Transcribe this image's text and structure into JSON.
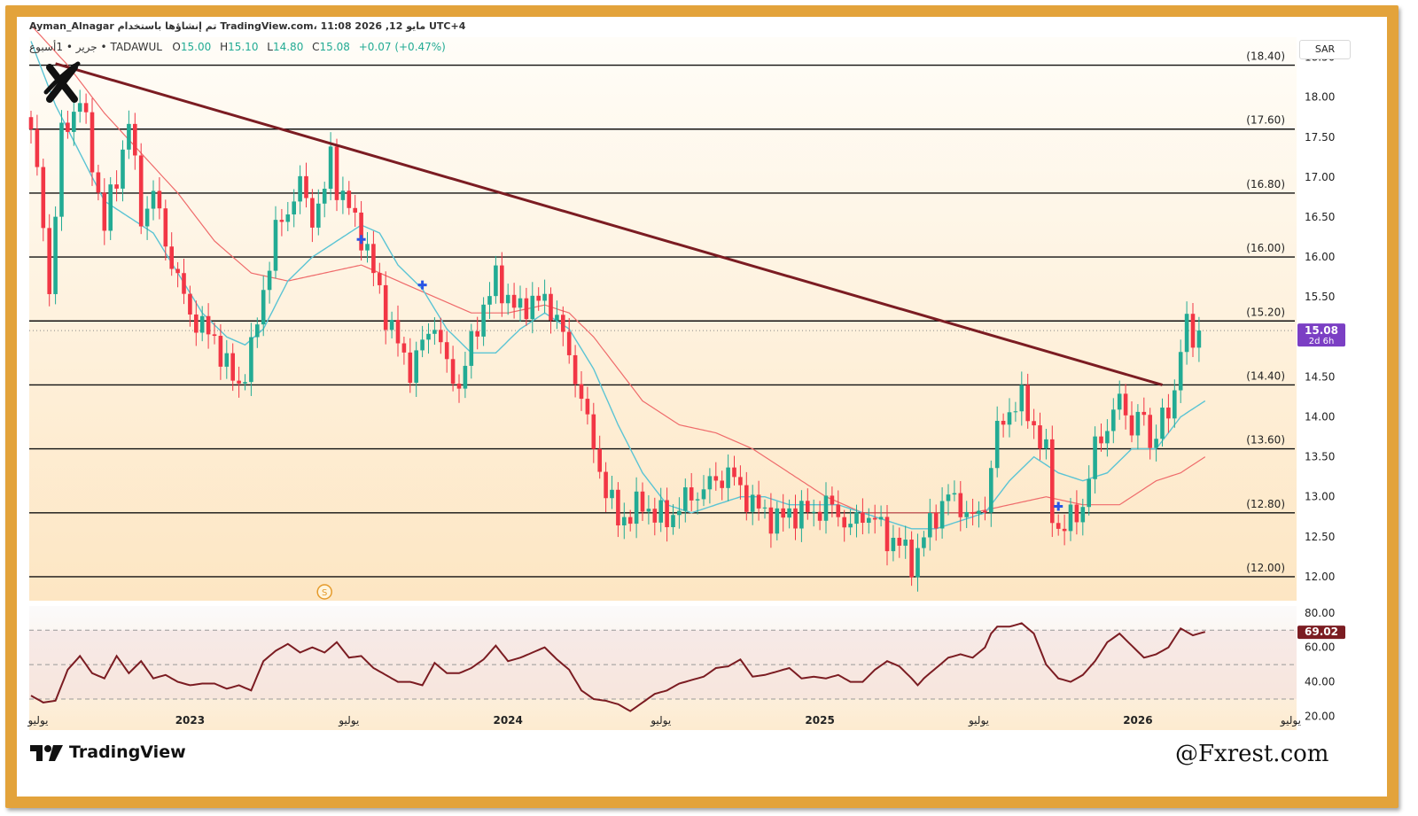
{
  "header": {
    "line1": "Ayman_Alnagar تم إنشاؤها باستخدام TradingView.com، 11:08 2026 ,12 مايو UTC+4",
    "symbol_line": "جرير • 1أسبوع • TADAWUL",
    "open_label": "O",
    "open_value": "15.00",
    "high_label": "H",
    "high_value": "15.10",
    "low_label": "L",
    "low_value": "14.80",
    "close_label": "C",
    "close_value": "15.08",
    "change_value": "+0.07 (+0.47%)"
  },
  "currency_button": {
    "label": "SAR"
  },
  "logo_icon": "x-mark-icon",
  "footer": {
    "brand": "TradingView",
    "brand_icon": "tradingview-logo-icon",
    "watermark": "@Fxrest.com"
  },
  "colors": {
    "up": "#22ab94",
    "down": "#f23645",
    "trendline": "#7b1c22",
    "ma_fast": "#5bc4d4",
    "ma_slow": "#ef6b6b",
    "rsi": "#7b1c22",
    "price_badge": "#7b3fc4",
    "rsi_badge": "#7b1c22",
    "frame": "#e3a33b"
  },
  "chart_data": [
    {
      "type": "candlestick",
      "timeframe": "1W",
      "exchange": "TADAWUL",
      "ylim": [
        11.7,
        18.75
      ],
      "y_ticks": [
        "18.50",
        "18.00",
        "17.50",
        "17.00",
        "16.50",
        "16.00",
        "15.50",
        "15.00",
        "14.50",
        "14.00",
        "13.50",
        "13.00",
        "12.50",
        "12.00"
      ],
      "x_ticks": [
        {
          "label": "يوليو",
          "x_index": 0
        },
        {
          "label": "2023",
          "x_index": 26
        },
        {
          "label": "يوليو",
          "x_index": 52
        },
        {
          "label": "2024",
          "x_index": 78
        },
        {
          "label": "يوليو",
          "x_index": 103
        },
        {
          "label": "2025",
          "x_index": 129
        },
        {
          "label": "يوليو",
          "x_index": 155
        },
        {
          "label": "2026",
          "x_index": 181
        },
        {
          "label": "يوليو",
          "x_index": 206
        }
      ],
      "levels": [
        {
          "value": 18.4,
          "label": "(18.40)"
        },
        {
          "value": 17.6,
          "label": "(17.60)"
        },
        {
          "value": 16.8,
          "label": "(16.80)"
        },
        {
          "value": 16.0,
          "label": "(16.00)"
        },
        {
          "value": 15.2,
          "label": "(15.20)"
        },
        {
          "value": 14.4,
          "label": "(14.40)"
        },
        {
          "value": 13.6,
          "label": "(13.60)"
        },
        {
          "value": 12.8,
          "label": "(12.80)"
        },
        {
          "value": 12.0,
          "label": "(12.00)"
        }
      ],
      "trendline": {
        "start": {
          "x_index": 4,
          "value": 18.42
        },
        "end": {
          "x_index": 185,
          "value": 14.4
        }
      },
      "current_price": {
        "value": 15.08,
        "label": "15.08",
        "countdown": "2d 6h"
      },
      "cross_markers": [
        {
          "x_index": 54,
          "value": 16.22
        },
        {
          "x_index": 64,
          "value": 15.65
        },
        {
          "x_index": 168,
          "value": 12.88
        }
      ],
      "dividend_marker": {
        "x_index": 48,
        "label": "S"
      },
      "close_anchors": [
        [
          0,
          17.6
        ],
        [
          2,
          16.4
        ],
        [
          3,
          15.6
        ],
        [
          5,
          17.5
        ],
        [
          8,
          18.0
        ],
        [
          10,
          17.2
        ],
        [
          12,
          16.4
        ],
        [
          14,
          17.0
        ],
        [
          16,
          17.7
        ],
        [
          18,
          16.5
        ],
        [
          20,
          16.8
        ],
        [
          22,
          16.2
        ],
        [
          24,
          15.7
        ],
        [
          26,
          15.3
        ],
        [
          28,
          15.1
        ],
        [
          30,
          15.0
        ],
        [
          32,
          14.6
        ],
        [
          34,
          14.4
        ],
        [
          36,
          14.8
        ],
        [
          38,
          15.6
        ],
        [
          40,
          16.3
        ],
        [
          42,
          16.6
        ],
        [
          44,
          16.9
        ],
        [
          46,
          16.5
        ],
        [
          48,
          16.8
        ],
        [
          49,
          17.3
        ],
        [
          50,
          16.9
        ],
        [
          52,
          16.6
        ],
        [
          54,
          16.3
        ],
        [
          56,
          15.8
        ],
        [
          58,
          15.3
        ],
        [
          60,
          14.9
        ],
        [
          62,
          14.6
        ],
        [
          64,
          14.9
        ],
        [
          66,
          15.2
        ],
        [
          68,
          14.6
        ],
        [
          70,
          14.4
        ],
        [
          72,
          14.9
        ],
        [
          74,
          15.4
        ],
        [
          76,
          15.7
        ],
        [
          78,
          15.5
        ],
        [
          80,
          15.3
        ],
        [
          82,
          15.5
        ],
        [
          84,
          15.4
        ],
        [
          86,
          15.3
        ],
        [
          88,
          14.7
        ],
        [
          90,
          14.3
        ],
        [
          91,
          13.9
        ],
        [
          92,
          13.6
        ],
        [
          94,
          13.1
        ],
        [
          96,
          12.7
        ],
        [
          98,
          12.8
        ],
        [
          100,
          12.9
        ],
        [
          102,
          12.8
        ],
        [
          104,
          12.7
        ],
        [
          106,
          12.9
        ],
        [
          108,
          13.0
        ],
        [
          110,
          13.1
        ],
        [
          112,
          13.2
        ],
        [
          114,
          13.3
        ],
        [
          116,
          13.1
        ],
        [
          118,
          12.9
        ],
        [
          120,
          12.8
        ],
        [
          122,
          12.7
        ],
        [
          124,
          12.8
        ],
        [
          126,
          12.8
        ],
        [
          128,
          12.8
        ],
        [
          130,
          12.9
        ],
        [
          132,
          12.8
        ],
        [
          134,
          12.6
        ],
        [
          136,
          12.8
        ],
        [
          138,
          12.7
        ],
        [
          140,
          12.5
        ],
        [
          142,
          12.4
        ],
        [
          144,
          12.2
        ],
        [
          145,
          12.3
        ],
        [
          146,
          12.5
        ],
        [
          148,
          12.8
        ],
        [
          150,
          13.0
        ],
        [
          152,
          12.9
        ],
        [
          154,
          12.7
        ],
        [
          156,
          12.9
        ],
        [
          157,
          13.4
        ],
        [
          158,
          13.8
        ],
        [
          160,
          14.1
        ],
        [
          162,
          14.2
        ],
        [
          164,
          13.9
        ],
        [
          166,
          13.5
        ],
        [
          167,
          12.8
        ],
        [
          168,
          12.6
        ],
        [
          170,
          12.7
        ],
        [
          172,
          12.9
        ],
        [
          174,
          13.6
        ],
        [
          176,
          13.9
        ],
        [
          178,
          14.2
        ],
        [
          180,
          13.9
        ],
        [
          182,
          14.0
        ],
        [
          183,
          13.6
        ],
        [
          184,
          13.9
        ],
        [
          186,
          14.0
        ],
        [
          187,
          14.3
        ],
        [
          188,
          15.0
        ],
        [
          189,
          15.1
        ],
        [
          190,
          14.9
        ],
        [
          191,
          15.08
        ]
      ],
      "moving_average_fast": [
        [
          0,
          18.7
        ],
        [
          4,
          17.9
        ],
        [
          8,
          17.3
        ],
        [
          12,
          16.7
        ],
        [
          16,
          16.5
        ],
        [
          20,
          16.3
        ],
        [
          24,
          15.8
        ],
        [
          28,
          15.3
        ],
        [
          32,
          15.0
        ],
        [
          35,
          14.9
        ],
        [
          38,
          15.1
        ],
        [
          42,
          15.7
        ],
        [
          46,
          16.0
        ],
        [
          50,
          16.2
        ],
        [
          54,
          16.4
        ],
        [
          57,
          16.3
        ],
        [
          60,
          15.9
        ],
        [
          64,
          15.6
        ],
        [
          68,
          15.1
        ],
        [
          72,
          14.8
        ],
        [
          76,
          14.8
        ],
        [
          80,
          15.1
        ],
        [
          84,
          15.3
        ],
        [
          88,
          15.1
        ],
        [
          92,
          14.6
        ],
        [
          96,
          13.9
        ],
        [
          100,
          13.3
        ],
        [
          104,
          12.9
        ],
        [
          108,
          12.8
        ],
        [
          112,
          12.9
        ],
        [
          116,
          13.0
        ],
        [
          120,
          13.0
        ],
        [
          124,
          12.9
        ],
        [
          128,
          12.9
        ],
        [
          132,
          12.9
        ],
        [
          136,
          12.8
        ],
        [
          140,
          12.7
        ],
        [
          144,
          12.6
        ],
        [
          148,
          12.6
        ],
        [
          152,
          12.7
        ],
        [
          156,
          12.8
        ],
        [
          160,
          13.2
        ],
        [
          164,
          13.5
        ],
        [
          168,
          13.3
        ],
        [
          172,
          13.2
        ],
        [
          176,
          13.3
        ],
        [
          180,
          13.6
        ],
        [
          184,
          13.6
        ],
        [
          188,
          14.0
        ],
        [
          192,
          14.2
        ]
      ],
      "moving_average_slow": [
        [
          0,
          18.9
        ],
        [
          6,
          18.4
        ],
        [
          12,
          17.8
        ],
        [
          18,
          17.3
        ],
        [
          24,
          16.8
        ],
        [
          30,
          16.2
        ],
        [
          36,
          15.8
        ],
        [
          42,
          15.7
        ],
        [
          48,
          15.8
        ],
        [
          54,
          15.9
        ],
        [
          60,
          15.7
        ],
        [
          66,
          15.5
        ],
        [
          72,
          15.3
        ],
        [
          78,
          15.3
        ],
        [
          84,
          15.4
        ],
        [
          88,
          15.3
        ],
        [
          92,
          15.0
        ],
        [
          96,
          14.6
        ],
        [
          100,
          14.2
        ],
        [
          106,
          13.9
        ],
        [
          112,
          13.8
        ],
        [
          118,
          13.6
        ],
        [
          124,
          13.3
        ],
        [
          130,
          13.0
        ],
        [
          136,
          12.8
        ],
        [
          142,
          12.8
        ],
        [
          148,
          12.8
        ],
        [
          154,
          12.8
        ],
        [
          160,
          12.9
        ],
        [
          166,
          13.0
        ],
        [
          172,
          12.9
        ],
        [
          178,
          12.9
        ],
        [
          184,
          13.2
        ],
        [
          188,
          13.3
        ],
        [
          192,
          13.5
        ]
      ]
    },
    {
      "type": "line",
      "indicator": "RSI",
      "ylim": [
        12,
        84
      ],
      "y_ticks": [
        "80.00",
        "60.00",
        "40.00",
        "20.00"
      ],
      "bands": [
        70,
        50,
        30
      ],
      "current_value": {
        "value": 69.02,
        "label": "69.02"
      },
      "values_anchors": [
        [
          0,
          32
        ],
        [
          2,
          28
        ],
        [
          4,
          29
        ],
        [
          6,
          47
        ],
        [
          8,
          55
        ],
        [
          10,
          45
        ],
        [
          12,
          42
        ],
        [
          14,
          55
        ],
        [
          16,
          45
        ],
        [
          18,
          52
        ],
        [
          20,
          42
        ],
        [
          22,
          44
        ],
        [
          24,
          40
        ],
        [
          26,
          38
        ],
        [
          28,
          39
        ],
        [
          30,
          39
        ],
        [
          32,
          36
        ],
        [
          34,
          38
        ],
        [
          36,
          35
        ],
        [
          38,
          52
        ],
        [
          40,
          58
        ],
        [
          42,
          62
        ],
        [
          44,
          57
        ],
        [
          46,
          60
        ],
        [
          48,
          57
        ],
        [
          50,
          63
        ],
        [
          52,
          54
        ],
        [
          54,
          55
        ],
        [
          56,
          48
        ],
        [
          58,
          44
        ],
        [
          60,
          40
        ],
        [
          62,
          40
        ],
        [
          64,
          38
        ],
        [
          66,
          51
        ],
        [
          68,
          45
        ],
        [
          70,
          45
        ],
        [
          72,
          48
        ],
        [
          74,
          53
        ],
        [
          76,
          61
        ],
        [
          78,
          52
        ],
        [
          80,
          54
        ],
        [
          82,
          57
        ],
        [
          84,
          60
        ],
        [
          86,
          53
        ],
        [
          88,
          47
        ],
        [
          90,
          35
        ],
        [
          92,
          30
        ],
        [
          94,
          29
        ],
        [
          96,
          27
        ],
        [
          98,
          23
        ],
        [
          100,
          28
        ],
        [
          102,
          33
        ],
        [
          104,
          35
        ],
        [
          106,
          39
        ],
        [
          108,
          41
        ],
        [
          110,
          43
        ],
        [
          112,
          48
        ],
        [
          114,
          49
        ],
        [
          116,
          53
        ],
        [
          118,
          43
        ],
        [
          120,
          44
        ],
        [
          122,
          46
        ],
        [
          124,
          48
        ],
        [
          126,
          42
        ],
        [
          128,
          43
        ],
        [
          130,
          42
        ],
        [
          132,
          44
        ],
        [
          134,
          40
        ],
        [
          136,
          40
        ],
        [
          138,
          47
        ],
        [
          140,
          52
        ],
        [
          142,
          49
        ],
        [
          144,
          42
        ],
        [
          145,
          38
        ],
        [
          146,
          42
        ],
        [
          148,
          48
        ],
        [
          150,
          54
        ],
        [
          152,
          56
        ],
        [
          154,
          54
        ],
        [
          156,
          60
        ],
        [
          157,
          68
        ],
        [
          158,
          72
        ],
        [
          160,
          72
        ],
        [
          162,
          74
        ],
        [
          164,
          68
        ],
        [
          166,
          50
        ],
        [
          168,
          42
        ],
        [
          170,
          40
        ],
        [
          172,
          44
        ],
        [
          174,
          52
        ],
        [
          176,
          63
        ],
        [
          178,
          68
        ],
        [
          180,
          61
        ],
        [
          182,
          54
        ],
        [
          184,
          56
        ],
        [
          186,
          60
        ],
        [
          188,
          71
        ],
        [
          190,
          67
        ],
        [
          192,
          69
        ]
      ]
    }
  ]
}
